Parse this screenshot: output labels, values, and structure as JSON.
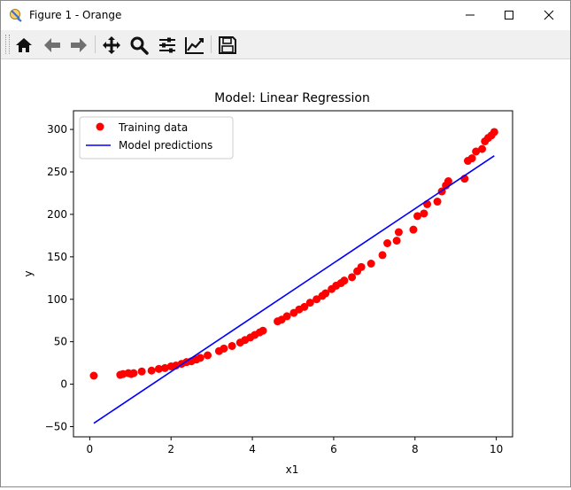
{
  "window": {
    "title": "Figure 1 - Orange",
    "minimize_icon": "minimize-icon",
    "maximize_icon": "maximize-icon",
    "close_icon": "close-icon"
  },
  "toolbar": {
    "buttons": [
      {
        "name": "home-icon"
      },
      {
        "name": "back-arrow-icon"
      },
      {
        "name": "forward-arrow-icon"
      },
      {
        "name": "pan-icon"
      },
      {
        "name": "zoom-icon"
      },
      {
        "name": "subplots-config-icon"
      },
      {
        "name": "edit-axis-icon"
      },
      {
        "name": "save-icon"
      }
    ]
  },
  "chart_data": {
    "type": "scatter",
    "title": "Model: Linear Regression",
    "xlabel": "x1",
    "ylabel": "y",
    "xlim": [
      -0.4,
      10.4
    ],
    "ylim": [
      -62,
      322
    ],
    "xticks": [
      0,
      2,
      4,
      6,
      8,
      10
    ],
    "yticks": [
      -50,
      0,
      50,
      100,
      150,
      200,
      250,
      300
    ],
    "grid": false,
    "legend_position": "upper-left",
    "series": [
      {
        "name": "Training data",
        "kind": "scatter",
        "color": "#ff0000",
        "x": [
          0.1,
          0.75,
          0.82,
          0.95,
          1.02,
          1.08,
          1.28,
          1.52,
          1.7,
          1.85,
          2.0,
          2.12,
          2.26,
          2.38,
          2.5,
          2.62,
          2.72,
          2.9,
          3.18,
          3.3,
          3.5,
          3.7,
          3.82,
          3.95,
          4.06,
          4.18,
          4.26,
          4.62,
          4.72,
          4.85,
          5.02,
          5.15,
          5.28,
          5.42,
          5.58,
          5.72,
          5.8,
          5.95,
          6.06,
          6.18,
          6.26,
          6.45,
          6.58,
          6.68,
          6.92,
          7.2,
          7.32,
          7.55,
          7.6,
          7.96,
          8.06,
          8.22,
          8.3,
          8.55,
          8.66,
          8.76,
          8.82,
          9.22,
          9.3,
          9.4,
          9.5,
          9.65,
          9.72,
          9.8,
          9.88,
          9.95
        ],
        "y": [
          10,
          11,
          12,
          13,
          12,
          13,
          15,
          16,
          18,
          19,
          21,
          22,
          24,
          26,
          27,
          29,
          31,
          34,
          39,
          42,
          45,
          49,
          52,
          55,
          58,
          61,
          63,
          74,
          76,
          80,
          84,
          88,
          91,
          96,
          100,
          104,
          107,
          112,
          116,
          119,
          122,
          126,
          133,
          138,
          142,
          152,
          166,
          169,
          179,
          182,
          198,
          201,
          212,
          215,
          227,
          234,
          239,
          242,
          263,
          266,
          274,
          277,
          286,
          290,
          293,
          297
        ],
        "marker": "circle"
      },
      {
        "name": "Model predictions",
        "kind": "line",
        "color": "#0000ff",
        "x": [
          0.1,
          9.95
        ],
        "y": [
          -46,
          269
        ]
      }
    ]
  }
}
